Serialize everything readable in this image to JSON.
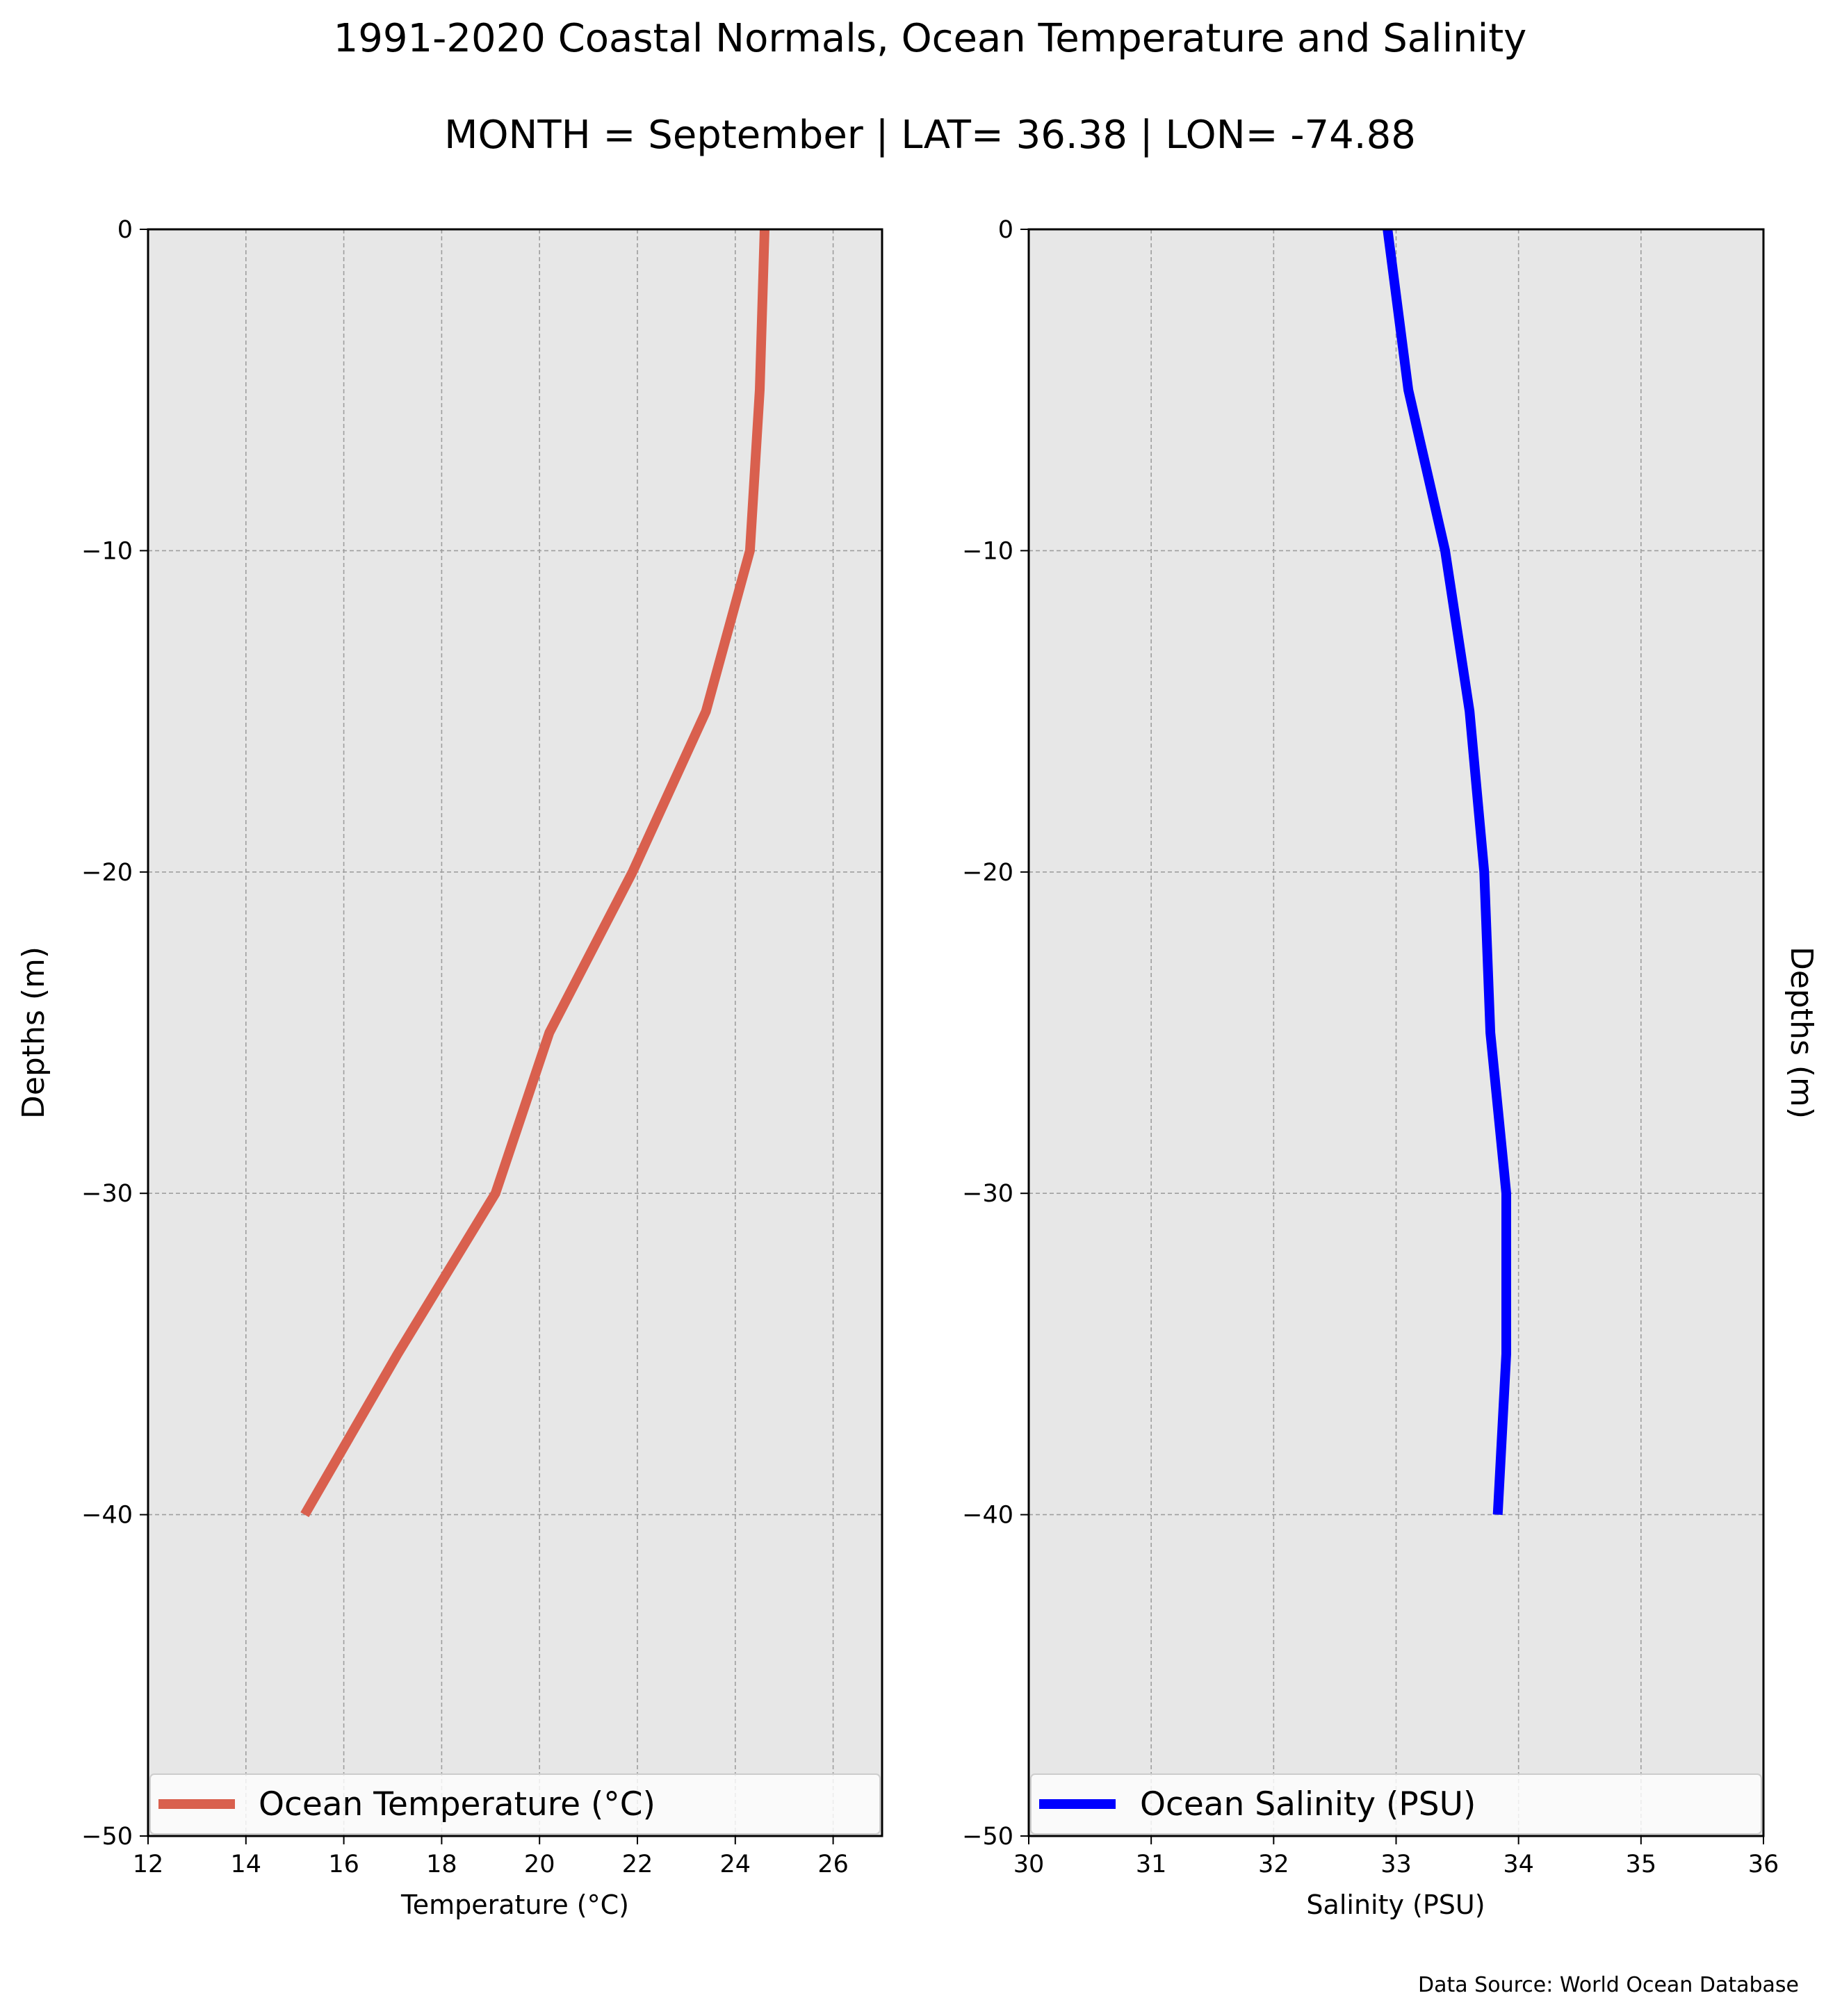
{
  "titles": {
    "main": "1991-2020 Coastal Normals, Ocean Temperature and Salinity",
    "subtitle": "MONTH = September | LAT= 36.38 | LON= -74.88"
  },
  "source_note": "Data Source: World Ocean Database",
  "colors": {
    "panel_background": "#e7e7e7",
    "grid": "#9e9e9e",
    "temperature_line": "#d9604e",
    "salinity_line": "#0000ff"
  },
  "chart_data": [
    {
      "type": "line",
      "orientation": "depth-profile",
      "xlabel": "Temperature ($^\\circ$C)",
      "ylabel": "Depths (m)",
      "xlim": [
        12,
        27
      ],
      "ylim": [
        -50,
        0
      ],
      "xticks": [
        12,
        14,
        16,
        18,
        20,
        22,
        24,
        26
      ],
      "yticks": [
        0,
        -10,
        -20,
        -30,
        -40,
        -50
      ],
      "xtick_labels": [
        "12",
        "14",
        "16",
        "18",
        "20",
        "22",
        "24",
        "26"
      ],
      "ytick_labels": [
        "0",
        "−10",
        "−20",
        "−30",
        "−40",
        "−50"
      ],
      "grid": true,
      "legend_position": "bottom",
      "series": [
        {
          "name": "Ocean Temperature ($^\\circ$C)",
          "x": [
            24.6,
            24.5,
            24.3,
            23.4,
            21.9,
            20.2,
            19.1,
            17.1,
            15.2
          ],
          "y": [
            0,
            -5,
            -10,
            -15,
            -20,
            -25,
            -30,
            -35,
            -40
          ]
        }
      ]
    },
    {
      "type": "line",
      "orientation": "depth-profile",
      "xlabel": "Salinity (PSU)",
      "ylabel": "Depths (m)",
      "xlim": [
        30,
        36
      ],
      "ylim": [
        -50,
        0
      ],
      "xticks": [
        30,
        31,
        32,
        33,
        34,
        35,
        36
      ],
      "yticks": [
        0,
        -10,
        -20,
        -30,
        -40,
        -50
      ],
      "xtick_labels": [
        "30",
        "31",
        "32",
        "33",
        "34",
        "35",
        "36"
      ],
      "ytick_labels": [
        "0",
        "−10",
        "−20",
        "−30",
        "−40",
        "−50"
      ],
      "grid": true,
      "legend_position": "bottom",
      "series": [
        {
          "name": "Ocean Salinity (PSU)",
          "x": [
            32.93,
            33.1,
            33.4,
            33.6,
            33.72,
            33.77,
            33.9,
            33.9,
            33.83
          ],
          "y": [
            0,
            -5,
            -10,
            -15,
            -20,
            -25,
            -30,
            -35,
            -40
          ]
        }
      ]
    }
  ]
}
